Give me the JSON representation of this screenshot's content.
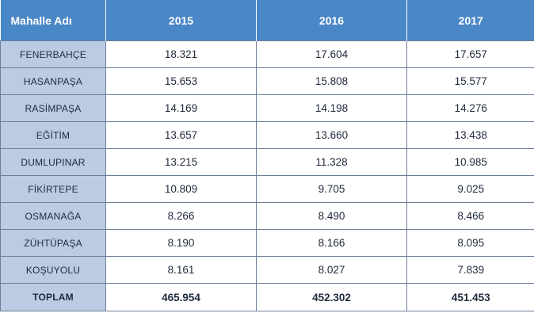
{
  "chart_data": {
    "type": "table",
    "columns": [
      "Mahalle Adı",
      "2015",
      "2016",
      "2017"
    ],
    "rows": [
      {
        "name": "FENERBAHÇE",
        "values": [
          "18.321",
          "17.604",
          "17.657"
        ]
      },
      {
        "name": "HASANPAŞA",
        "values": [
          "15.653",
          "15.808",
          "15.577"
        ]
      },
      {
        "name": "RASİMPAŞA",
        "values": [
          "14.169",
          "14.198",
          "14.276"
        ]
      },
      {
        "name": "EĞİTİM",
        "values": [
          "13.657",
          "13.660",
          "13.438"
        ]
      },
      {
        "name": "DUMLUPINAR",
        "values": [
          "13.215",
          "11.328",
          "10.985"
        ]
      },
      {
        "name": "FİKİRTEPE",
        "values": [
          "10.809",
          "9.705",
          "9.025"
        ]
      },
      {
        "name": "OSMANAĞA",
        "values": [
          "8.266",
          "8.490",
          "8.466"
        ]
      },
      {
        "name": "ZÜHTÜPAŞA",
        "values": [
          "8.190",
          "8.166",
          "8.095"
        ]
      },
      {
        "name": "KOŞUYOLU",
        "values": [
          "8.161",
          "8.027",
          "7.839"
        ]
      }
    ],
    "total": {
      "name": "TOPLAM",
      "values": [
        "465.954",
        "452.302",
        "451.453"
      ]
    }
  },
  "colors": {
    "header_bg": "#4a87c6",
    "name_cell_bg": "#bccbe4",
    "border": "#6d7f98",
    "text": "#1f2a3c"
  }
}
